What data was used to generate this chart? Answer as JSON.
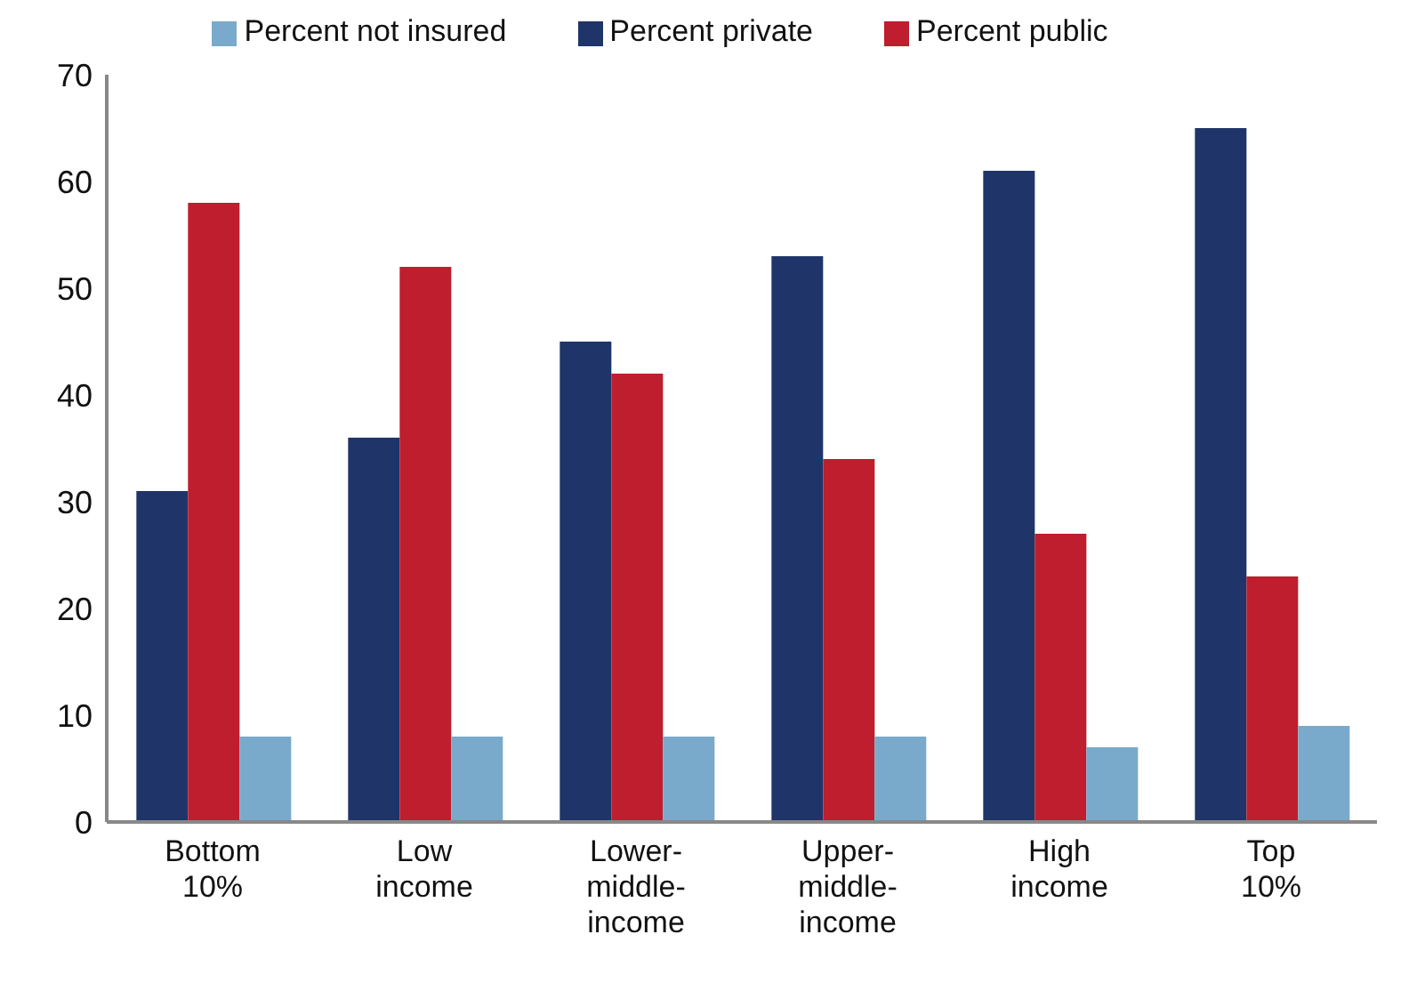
{
  "chart_data": {
    "type": "bar",
    "categories": [
      "Bottom 10%",
      "Low income",
      "Lower-middle-income",
      "Upper-middle-income",
      "High income",
      "Top 10%"
    ],
    "series": [
      {
        "name": "Percent private",
        "color": "#1f3569",
        "values": [
          31,
          36,
          45,
          53,
          61,
          65
        ]
      },
      {
        "name": "Percent public",
        "color": "#be1e2d",
        "values": [
          58,
          52,
          42,
          34,
          27,
          23
        ]
      },
      {
        "name": "Percent not insured",
        "color": "#79aacb",
        "values": [
          8,
          8,
          8,
          8,
          7,
          9
        ]
      }
    ],
    "ylim": [
      0,
      70
    ],
    "yticks": [
      0,
      10,
      20,
      30,
      40,
      50,
      60,
      70
    ],
    "grid": false,
    "legend": "top"
  }
}
